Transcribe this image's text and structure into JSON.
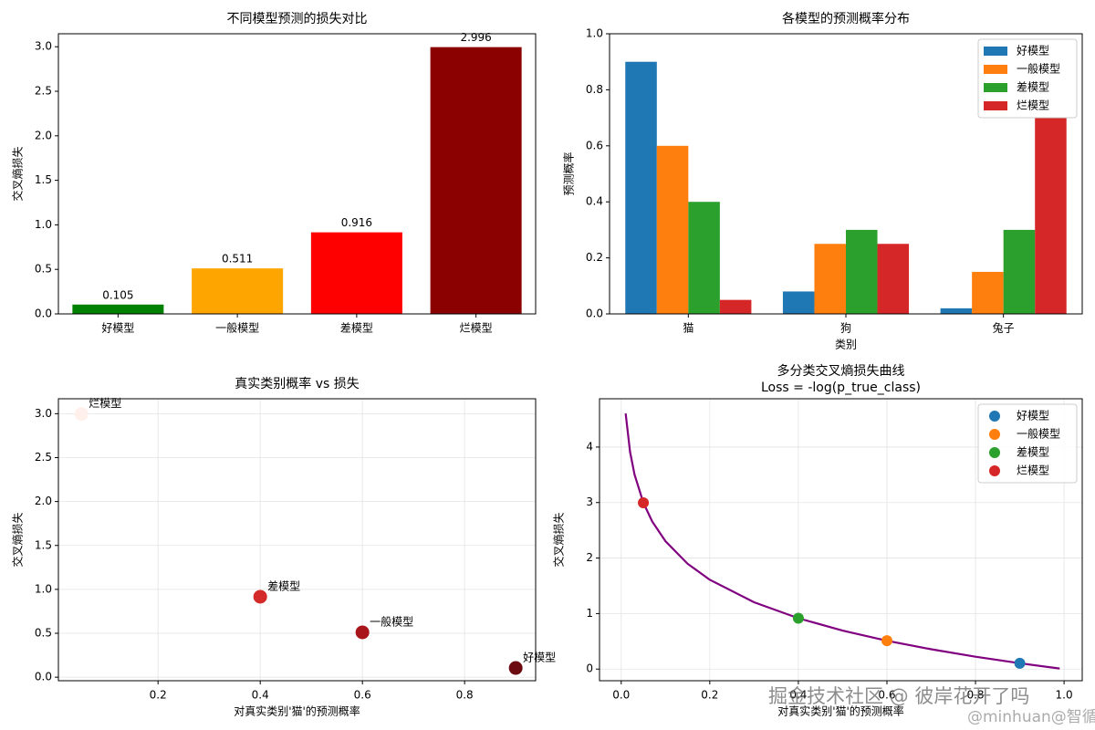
{
  "chart_data": [
    {
      "type": "bar",
      "title": "不同模型预测的损失对比",
      "ylabel": "交叉熵损失",
      "categories": [
        "好模型",
        "一般模型",
        "差模型",
        "烂模型"
      ],
      "values": [
        0.105,
        0.511,
        0.916,
        2.996
      ],
      "colors": [
        "#008000",
        "#ffa500",
        "#ff0000",
        "#8b0000"
      ],
      "ylim": [
        0,
        3.146
      ],
      "yticks": [
        {
          "value": 0,
          "label": "0.0"
        },
        0.5,
        {
          "value": 1,
          "label": "1.0"
        },
        1.5,
        {
          "value": 2,
          "label": "2.0"
        },
        2.5,
        {
          "value": 3,
          "label": "3.0"
        }
      ],
      "grid": false
    },
    {
      "type": "bar",
      "title": "各模型的预测概率分布",
      "xlabel": "类别",
      "ylabel": "预测概率",
      "categories": [
        "猫",
        "狗",
        "兔子"
      ],
      "series": [
        {
          "name": "好模型",
          "color": "#1f77b4",
          "values": [
            0.9,
            0.08,
            0.02
          ]
        },
        {
          "name": "一般模型",
          "color": "#ff7f0e",
          "values": [
            0.6,
            0.25,
            0.15
          ]
        },
        {
          "name": "差模型",
          "color": "#2ca02c",
          "values": [
            0.4,
            0.3,
            0.3
          ]
        },
        {
          "name": "烂模型",
          "color": "#d62728",
          "values": [
            0.05,
            0.25,
            0.7
          ]
        }
      ],
      "ylim": [
        0,
        1
      ],
      "yticks": [
        {
          "value": 0,
          "label": "0.0"
        },
        0.2,
        0.4,
        0.6,
        0.8,
        {
          "value": 1,
          "label": "1.0"
        }
      ],
      "legend": "upper right",
      "grid": false
    },
    {
      "type": "scatter",
      "title": "真实类别概率 vs 损失",
      "xlabel": "对真实类别'猫'的预测概率",
      "ylabel": "交叉熵损失",
      "x": [
        0.9,
        0.6,
        0.4,
        0.05
      ],
      "values": [
        0.105,
        0.511,
        0.916,
        2.996
      ],
      "labels": [
        "好模型",
        "一般模型",
        "差模型",
        "烂模型"
      ],
      "colors": [
        "#6b0a10",
        "#a8161c",
        "#d42a2a",
        "#fff0eb"
      ],
      "xlim": [
        0.005,
        0.939
      ],
      "xticks": [
        0.2,
        0.4,
        0.6,
        0.8
      ],
      "ylim": [
        -0.04,
        3.17
      ],
      "yticks": [
        {
          "value": 0,
          "label": "0.0"
        },
        0.5,
        {
          "value": 1,
          "label": "1.0"
        },
        1.5,
        {
          "value": 2,
          "label": "2.0"
        },
        2.5,
        {
          "value": 3,
          "label": "3.0"
        }
      ],
      "grid": true
    },
    {
      "type": "line",
      "title": "多分类交叉熵损失曲线",
      "subtitle": "Loss = -log(p_true_class)",
      "xlabel": "对真实类别'猫'的预测概率",
      "ylabel": "交叉熵损失",
      "x": [
        0.01,
        0.02,
        0.03,
        0.05,
        0.07,
        0.1,
        0.15,
        0.2,
        0.3,
        0.4,
        0.5,
        0.6,
        0.7,
        0.8,
        0.9,
        0.99
      ],
      "values": [
        4.605,
        3.912,
        3.507,
        2.996,
        2.659,
        2.303,
        1.897,
        1.609,
        1.204,
        0.916,
        0.693,
        0.511,
        0.357,
        0.223,
        0.105,
        0.01
      ],
      "color": "#800080",
      "series": [
        {
          "name": "好模型",
          "color": "#1f77b4",
          "x": [
            0.9
          ],
          "values": [
            0.105
          ]
        },
        {
          "name": "一般模型",
          "color": "#ff7f0e",
          "x": [
            0.6
          ],
          "values": [
            0.511
          ]
        },
        {
          "name": "差模型",
          "color": "#2ca02c",
          "x": [
            0.4
          ],
          "values": [
            0.916
          ]
        },
        {
          "name": "烂模型",
          "color": "#d62728",
          "x": [
            0.05
          ],
          "values": [
            2.996
          ]
        }
      ],
      "xlim": [
        -0.049,
        1.041
      ],
      "xticks": [
        {
          "value": 0,
          "label": "0.0"
        },
        0.2,
        0.4,
        0.6,
        0.8,
        {
          "value": 1,
          "label": "1.0"
        }
      ],
      "ylim": [
        -0.21,
        4.87
      ],
      "yticks": [
        0,
        1,
        2,
        3,
        4
      ],
      "legend": "upper right",
      "grid": true
    }
  ],
  "watermark": [
    "掘金技术社区 @ 彼岸花开了吗",
    "@minhuan@智循AI"
  ]
}
